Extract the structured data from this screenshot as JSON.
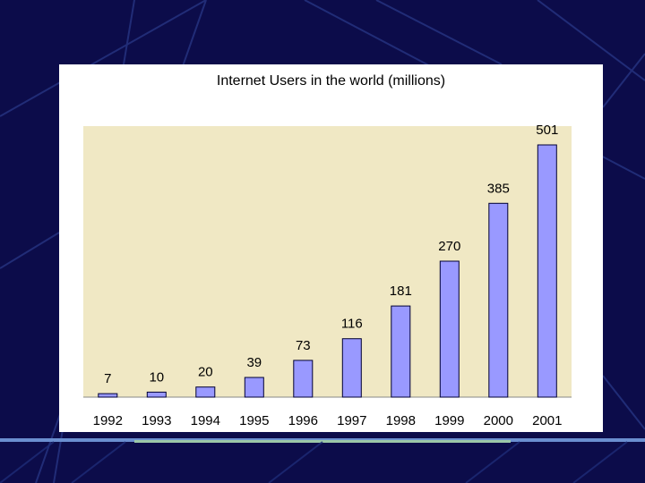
{
  "chart_data": {
    "type": "bar",
    "title": "Internet Users in the world (millions)",
    "categories": [
      "1992",
      "1993",
      "1994",
      "1995",
      "1996",
      "1997",
      "1998",
      "1999",
      "2000",
      "2001"
    ],
    "values": [
      7,
      10,
      20,
      39,
      73,
      116,
      181,
      270,
      385,
      501
    ],
    "data_labels": [
      "7",
      "10",
      "20",
      "39",
      "73",
      "116",
      "181",
      "270",
      "385",
      "501"
    ],
    "xlabel": "",
    "ylabel": "",
    "ylim": [
      0,
      550
    ],
    "grid": false,
    "legend": "none",
    "colors": {
      "bar": "#9999ff",
      "plot_background": "#f0e8c4",
      "slide_background": "#0c0c4a"
    }
  }
}
